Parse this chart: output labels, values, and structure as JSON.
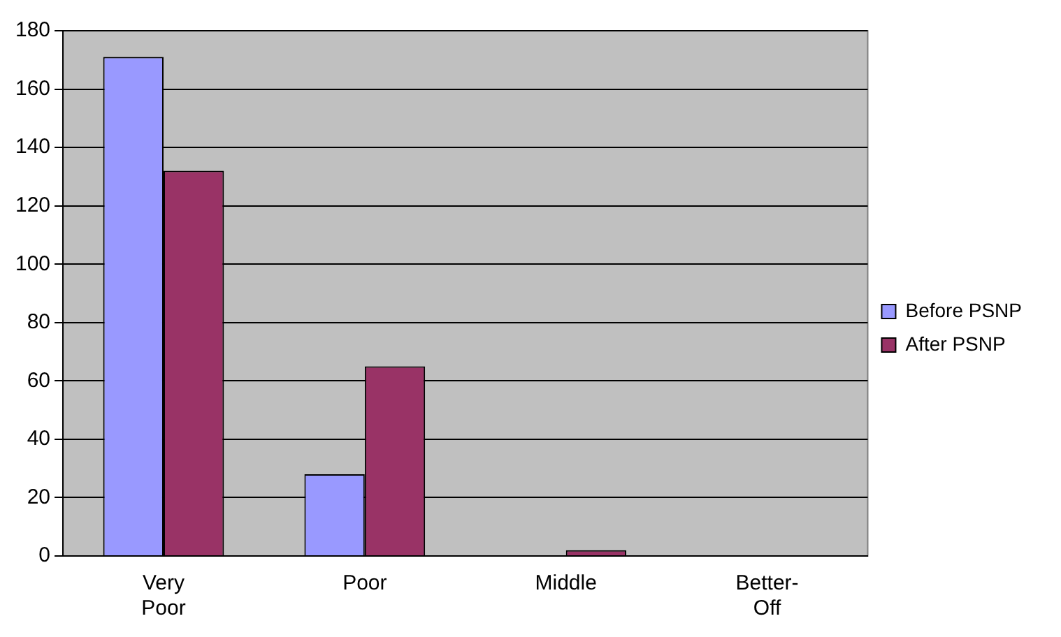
{
  "chart_data": {
    "type": "bar",
    "categories": [
      "Very Poor",
      "Poor",
      "Middle",
      "Better-Off"
    ],
    "series": [
      {
        "name": "Before PSNP",
        "color": "#9999ff",
        "values": [
          171,
          28,
          0,
          0
        ]
      },
      {
        "name": "After PSNP",
        "color": "#993366",
        "values": [
          132,
          65,
          2,
          0
        ]
      }
    ],
    "ylim": [
      0,
      180
    ],
    "yticks": [
      0,
      20,
      40,
      60,
      80,
      100,
      120,
      140,
      160,
      180
    ],
    "grid": "y",
    "legend": "right"
  }
}
